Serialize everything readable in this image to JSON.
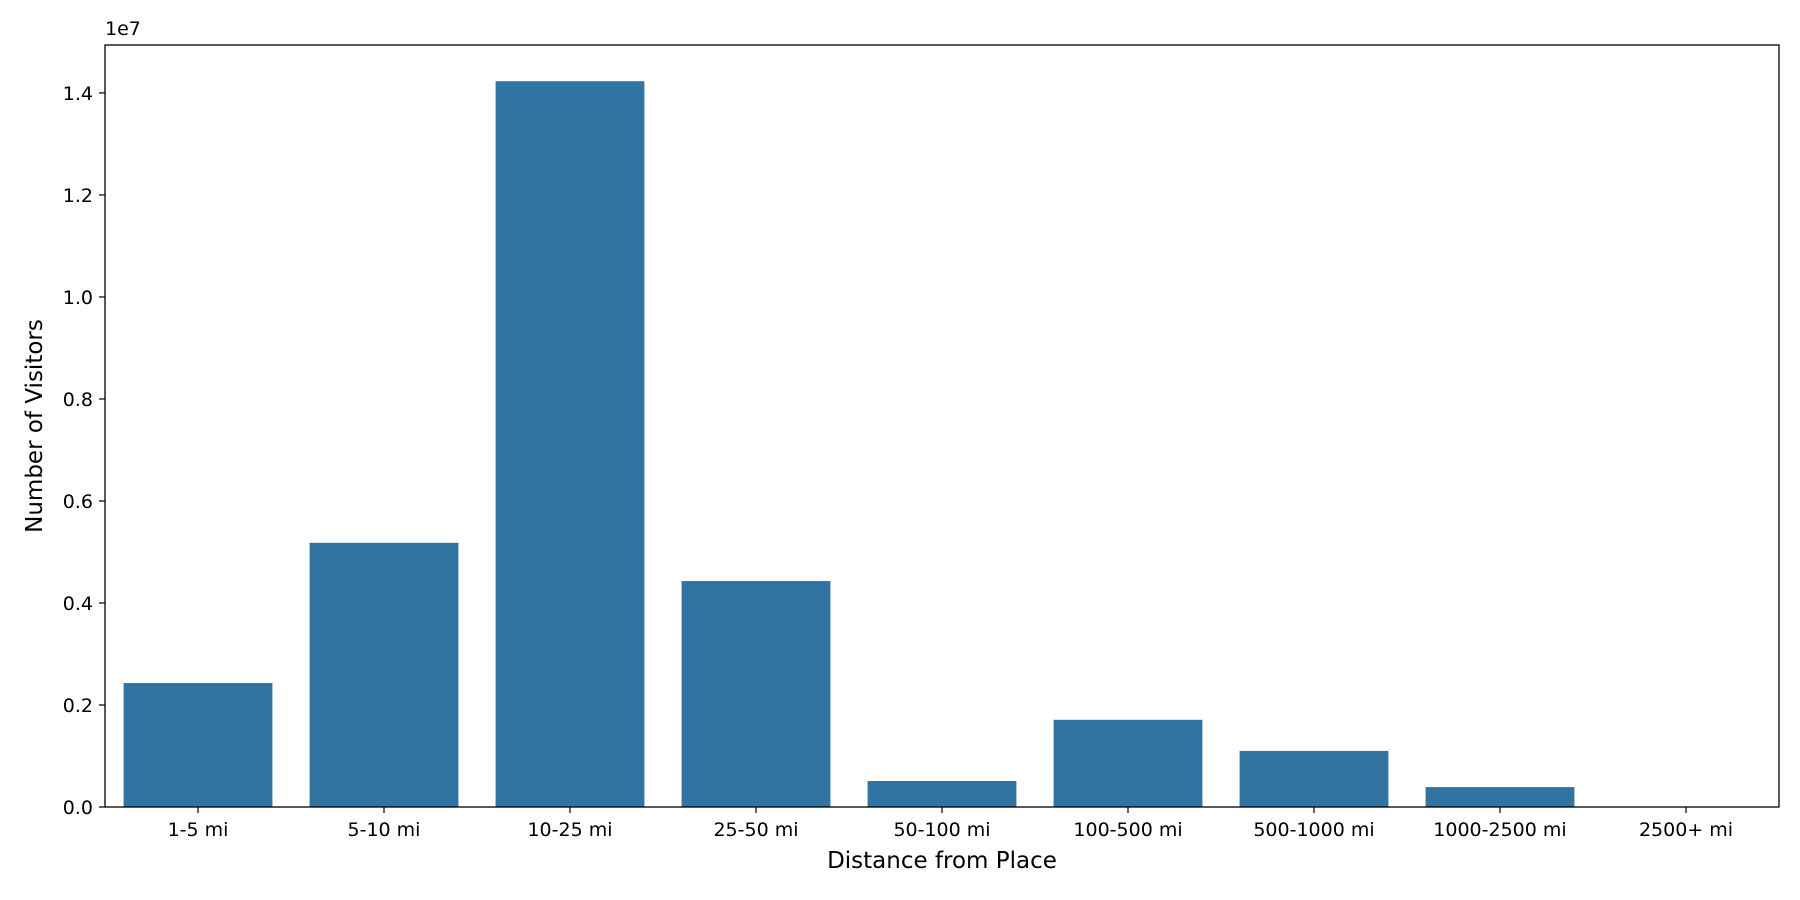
{
  "chart_data": {
    "type": "bar",
    "categories": [
      "1-5 mi",
      "5-10 mi",
      "10-25 mi",
      "25-50 mi",
      "50-100 mi",
      "100-500 mi",
      "500-1000 mi",
      "1000-2500 mi",
      "2500+ mi"
    ],
    "values": [
      2430000,
      5180000,
      14230000,
      4430000,
      510000,
      1710000,
      1100000,
      390000,
      0
    ],
    "xlabel": "Distance from Place",
    "ylabel": "Number of Visitors",
    "ylim": [
      0,
      14940000
    ],
    "y_ticks": [
      0,
      2000000,
      4000000,
      6000000,
      8000000,
      10000000,
      12000000,
      14000000
    ],
    "y_tick_labels": [
      "0.0",
      "0.2",
      "0.4",
      "0.6",
      "0.8",
      "1.0",
      "1.2",
      "1.4"
    ],
    "y_offset_label": "1e7",
    "grid": false,
    "legend": "none",
    "bar_color": "#3274a1"
  }
}
